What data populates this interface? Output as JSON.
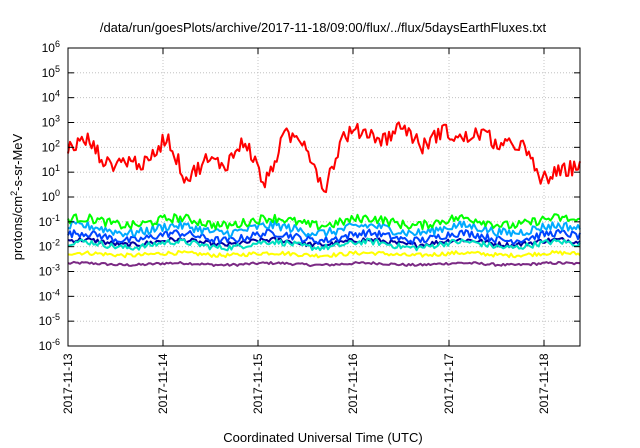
{
  "chart_data": {
    "type": "line",
    "title": "/data/run/goesPlots/archive/2017-11-18/09:00/flux/../flux/5daysEarthFluxes.txt",
    "xlabel": "Coordinated Universal Time (UTC)",
    "ylabel": "protons/cm2-s-sr-MeV",
    "ylabel_parts": {
      "pre": "protons/cm",
      "sup": "2",
      "post": "-s-sr-MeV"
    },
    "y_scale": "log",
    "ylim_exponent": [
      -6,
      6
    ],
    "y_ticks": [
      {
        "base": "10",
        "exp": "-6"
      },
      {
        "base": "10",
        "exp": "-5"
      },
      {
        "base": "10",
        "exp": "-4"
      },
      {
        "base": "10",
        "exp": "-3"
      },
      {
        "base": "10",
        "exp": "-2"
      },
      {
        "base": "10",
        "exp": "-1"
      },
      {
        "base": "10",
        "exp": "0"
      },
      {
        "base": "10",
        "exp": "1"
      },
      {
        "base": "10",
        "exp": "2"
      },
      {
        "base": "10",
        "exp": "3"
      },
      {
        "base": "10",
        "exp": "4"
      },
      {
        "base": "10",
        "exp": "5"
      },
      {
        "base": "10",
        "exp": "6"
      }
    ],
    "x_range_days": [
      "2017-11-13",
      "2017-11-18 09:00"
    ],
    "x_ticks": [
      "2017-11-13",
      "2017-11-14",
      "2017-11-15",
      "2017-11-16",
      "2017-11-17",
      "2017-11-18"
    ],
    "grid": true,
    "series": [
      {
        "color": "#ff0000",
        "base": 30,
        "amp": 0.65,
        "noise": 0.4,
        "note_values": [
          100,
          200,
          20,
          30,
          20,
          300,
          5,
          30,
          20,
          200,
          3,
          300,
          200,
          2,
          300,
          500,
          200,
          800,
          100,
          500,
          200,
          400,
          100,
          150,
          5,
          10,
          20
        ]
      },
      {
        "color": "#00ff00",
        "base": 0.1,
        "amp": 0.15,
        "noise": 0.18
      },
      {
        "color": "#00aaff",
        "base": 0.05,
        "amp": 0.15,
        "noise": 0.18
      },
      {
        "color": "#0044ff",
        "base": 0.025,
        "amp": 0.15,
        "noise": 0.15
      },
      {
        "color": "#00e0c0",
        "base": 0.012,
        "amp": 0.12,
        "noise": 0.12
      },
      {
        "color": "#0000a0",
        "base": 0.015,
        "amp": 0.1,
        "noise": 0.1
      },
      {
        "color": "#ffff00",
        "base": 0.005,
        "amp": 0.05,
        "noise": 0.08
      },
      {
        "color": "#7b2a84",
        "base": 0.002,
        "amp": 0.04,
        "noise": 0.05
      }
    ]
  }
}
